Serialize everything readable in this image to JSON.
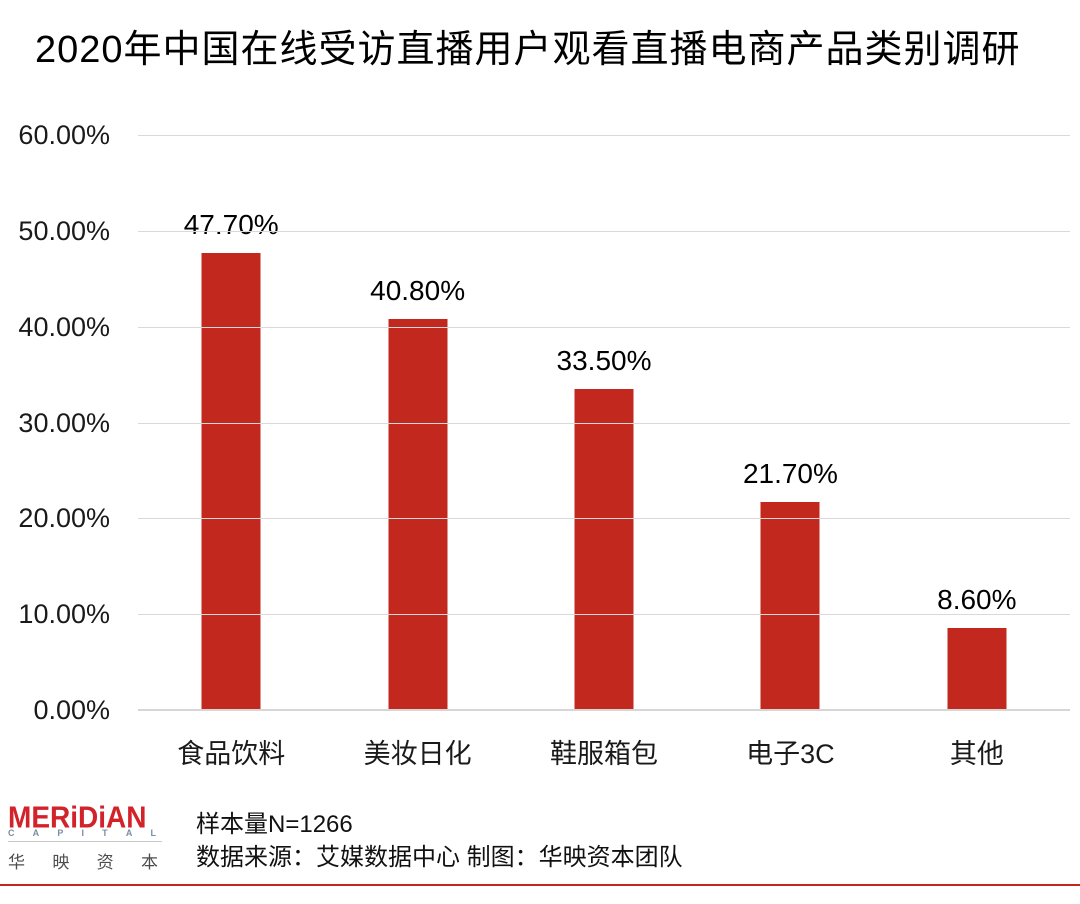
{
  "title": "2020年中国在线受访直播用户观看直播电商产品类别调研",
  "chart_data": {
    "type": "bar",
    "title": "2020年中国在线受访直播用户观看直播电商产品类别调研",
    "categories": [
      "食品饮料",
      "美妆日化",
      "鞋服箱包",
      "电子3C",
      "其他"
    ],
    "values": [
      47.7,
      40.8,
      33.5,
      21.7,
      8.6
    ],
    "value_labels": [
      "47.70%",
      "40.80%",
      "33.50%",
      "21.70%",
      "8.60%"
    ],
    "xlabel": "",
    "ylabel": "",
    "ylim": [
      0,
      60
    ],
    "y_ticks": [
      {
        "value": 60,
        "label": "60.00%"
      },
      {
        "value": 50,
        "label": "50.00%"
      },
      {
        "value": 40,
        "label": "40.00%"
      },
      {
        "value": 30,
        "label": "30.00%"
      },
      {
        "value": 20,
        "label": "20.00%"
      },
      {
        "value": 10,
        "label": "10.00%"
      },
      {
        "value": 0,
        "label": "0.00%"
      }
    ],
    "grid": true,
    "legend": false,
    "bar_color": "#c2281e"
  },
  "footer": {
    "logo": {
      "wordmark": "MERiDiAN",
      "capital_letters": [
        "C",
        "A",
        "P",
        "I",
        "T",
        "A",
        "L"
      ],
      "chinese_chars": [
        "华",
        "映",
        "资",
        "本"
      ]
    },
    "sample_size": "样本量N=1266",
    "source": "数据来源：艾媒数据中心 制图：华映资本团队"
  },
  "colors": {
    "bar": "#c2281e",
    "gridline": "#d9d9d9",
    "title_text": "#000000",
    "logo_red": "#d2232a",
    "footer_rule": "#c2281e"
  }
}
